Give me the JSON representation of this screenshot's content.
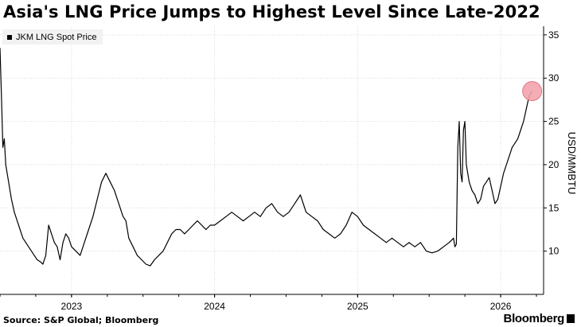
{
  "title": "Asia's LNG Price Jumps to Highest Level Since Late-2022",
  "legend": {
    "label": "JKM LNG Spot Price"
  },
  "source": "Source: S&P Global; Bloomberg",
  "brand": "Bloomberg",
  "colors": {
    "line": "#000000",
    "highlight": "#f3a3ad",
    "grid": "#d9d9d9",
    "legend_bg": "#f2f2f2"
  },
  "chart_data": {
    "type": "line",
    "title": "Asia's LNG Price Jumps to Highest Level Since Late-2022",
    "ylabel": "USD/MMBTU",
    "xlabel": "",
    "ylim": [
      5,
      36
    ],
    "yticks": [
      10,
      15,
      20,
      25,
      30,
      35
    ],
    "xlim": [
      2022.5,
      2026.3
    ],
    "xticks": [
      {
        "label": "2023",
        "x": 2023.0
      },
      {
        "label": "2024",
        "x": 2024.0
      },
      {
        "label": "2025",
        "x": 2025.0
      },
      {
        "label": "2026",
        "x": 2026.0
      }
    ],
    "grid": true,
    "y_axis_side": "right",
    "legend_placement": "top-left",
    "series": [
      {
        "name": "JKM LNG Spot Price",
        "x": [
          2022.5,
          2022.51,
          2022.52,
          2022.53,
          2022.54,
          2022.56,
          2022.58,
          2022.6,
          2022.62,
          2022.64,
          2022.66,
          2022.68,
          2022.7,
          2022.72,
          2022.74,
          2022.76,
          2022.78,
          2022.8,
          2022.82,
          2022.84,
          2022.86,
          2022.88,
          2022.9,
          2022.92,
          2022.94,
          2022.96,
          2022.98,
          2023.0,
          2023.03,
          2023.06,
          2023.09,
          2023.12,
          2023.15,
          2023.18,
          2023.21,
          2023.24,
          2023.27,
          2023.3,
          2023.32,
          2023.34,
          2023.36,
          2023.38,
          2023.4,
          2023.43,
          2023.46,
          2023.49,
          2023.52,
          2023.55,
          2023.58,
          2023.61,
          2023.64,
          2023.67,
          2023.7,
          2023.73,
          2023.76,
          2023.79,
          2023.82,
          2023.85,
          2023.88,
          2023.91,
          2023.94,
          2023.97,
          2024.0,
          2024.04,
          2024.08,
          2024.12,
          2024.16,
          2024.2,
          2024.24,
          2024.28,
          2024.32,
          2024.36,
          2024.4,
          2024.44,
          2024.48,
          2024.52,
          2024.56,
          2024.6,
          2024.64,
          2024.68,
          2024.72,
          2024.76,
          2024.8,
          2024.84,
          2024.88,
          2024.92,
          2024.96,
          2025.0,
          2025.04,
          2025.08,
          2025.12,
          2025.16,
          2025.2,
          2025.24,
          2025.28,
          2025.32,
          2025.36,
          2025.4,
          2025.44,
          2025.48,
          2025.52,
          2025.56,
          2025.6,
          2025.64,
          2025.67,
          2025.68,
          2025.69,
          2025.7,
          2025.71,
          2025.72,
          2025.73,
          2025.74,
          2025.75,
          2025.76,
          2025.78,
          2025.8,
          2025.82,
          2025.84,
          2025.86,
          2025.88,
          2025.9,
          2025.92,
          2025.94,
          2025.96,
          2025.98,
          2026.0,
          2026.02,
          2026.04,
          2026.06,
          2026.08,
          2026.1,
          2026.12,
          2026.14,
          2026.16,
          2026.18,
          2026.2,
          2026.22
        ],
        "values": [
          33.5,
          28.0,
          22.0,
          23.0,
          20.0,
          18.0,
          16.0,
          14.5,
          13.5,
          12.5,
          11.5,
          11.0,
          10.5,
          10.0,
          9.5,
          9.0,
          8.8,
          8.5,
          9.5,
          13.0,
          12.0,
          11.0,
          10.5,
          9.0,
          11.0,
          12.0,
          11.5,
          10.5,
          10.0,
          9.5,
          11.0,
          12.5,
          14.0,
          16.0,
          18.0,
          19.0,
          18.0,
          17.0,
          16.0,
          15.0,
          14.0,
          13.5,
          11.5,
          10.5,
          9.5,
          9.0,
          8.5,
          8.3,
          9.0,
          9.5,
          10.0,
          11.0,
          12.0,
          12.5,
          12.5,
          12.0,
          12.5,
          13.0,
          13.5,
          13.0,
          12.5,
          13.0,
          13.0,
          13.5,
          14.0,
          14.5,
          14.0,
          13.5,
          14.0,
          14.5,
          14.0,
          15.0,
          15.5,
          14.5,
          14.0,
          14.5,
          15.5,
          16.5,
          14.5,
          14.0,
          13.5,
          12.5,
          12.0,
          11.5,
          12.0,
          13.0,
          14.5,
          14.0,
          13.0,
          12.5,
          12.0,
          11.5,
          11.0,
          11.5,
          11.0,
          10.5,
          11.0,
          10.5,
          11.0,
          10.0,
          9.8,
          10.0,
          10.5,
          11.0,
          11.5,
          10.5,
          10.8,
          22.0,
          25.0,
          19.0,
          18.0,
          24.0,
          25.0,
          20.0,
          18.0,
          17.0,
          16.5,
          15.5,
          16.0,
          17.5,
          18.0,
          18.5,
          17.0,
          15.5,
          16.0,
          17.5,
          19.0,
          20.0,
          21.0,
          22.0,
          22.5,
          23.0,
          24.0,
          25.0,
          26.5,
          28.0,
          28.5
        ]
      }
    ],
    "highlight_point": {
      "x": 2026.22,
      "y": 28.5
    }
  }
}
